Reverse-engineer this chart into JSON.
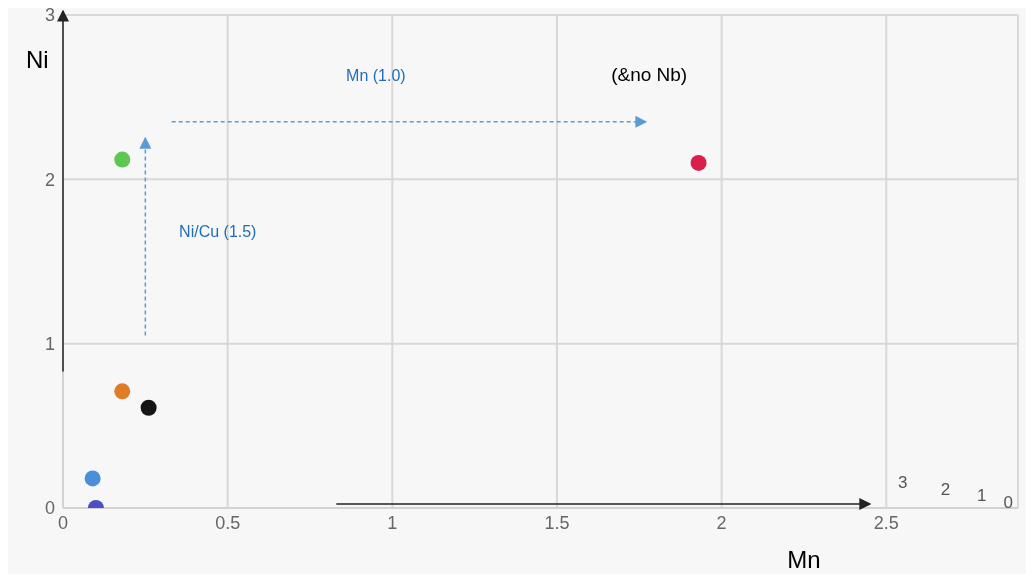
{
  "chart_data": {
    "type": "scatter",
    "xlabel": "Mn",
    "ylabel": "Ni",
    "x": [
      0.1,
      0.09,
      0.18,
      0.26,
      0.18,
      1.93
    ],
    "values": [
      0.0,
      0.18,
      0.71,
      0.61,
      2.12,
      2.1
    ],
    "colors": [
      "#4a4fc4",
      "#4a90d9",
      "#e07b28",
      "#151515",
      "#5dc84f",
      "#d8204a"
    ],
    "xlim": [
      0,
      2.9
    ],
    "xticks": [
      0,
      0.5,
      1,
      1.5,
      2,
      2.5
    ],
    "ylim": [
      0,
      3
    ],
    "yticks": [
      0,
      1,
      2,
      3
    ],
    "grid": true,
    "marker": "circle",
    "annotations": [
      "Mn (1.0)",
      "Ni/Cu (1.5)",
      "(&no Nb)",
      "3",
      "2",
      "1",
      "0"
    ]
  }
}
